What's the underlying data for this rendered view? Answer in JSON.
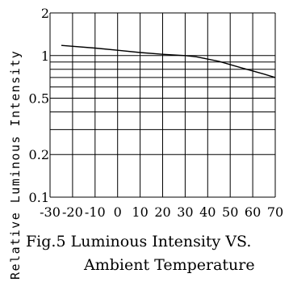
{
  "chart_data": {
    "type": "line",
    "title": "",
    "xlabel": "",
    "ylabel": "Relative Luminous Intensity",
    "caption_line1": "Fig.5 Luminous Intensity VS.",
    "caption_line2": "Ambient Temperature",
    "xlim": [
      -30,
      70
    ],
    "ylim": [
      0.1,
      2
    ],
    "y_scale": "log",
    "grid": true,
    "x_tick_labels": [
      "-30",
      "-20",
      "-10",
      "0",
      "10",
      "20",
      "30",
      "40",
      "50",
      "60",
      "70"
    ],
    "y_tick_labels": [
      {
        "value": 0.1,
        "label": "0.1"
      },
      {
        "value": 0.2,
        "label": "0.2"
      },
      {
        "value": 0.5,
        "label": "0.5"
      },
      {
        "value": 1,
        "label": "1"
      },
      {
        "value": 2,
        "label": "2"
      }
    ],
    "series": [
      {
        "x": [
          -25,
          -10,
          0,
          10,
          20,
          30,
          35,
          45,
          55,
          65,
          70
        ],
        "y": [
          1.18,
          1.13,
          1.09,
          1.05,
          1.02,
          1.0,
          0.98,
          0.91,
          0.82,
          0.74,
          0.7
        ]
      }
    ]
  }
}
